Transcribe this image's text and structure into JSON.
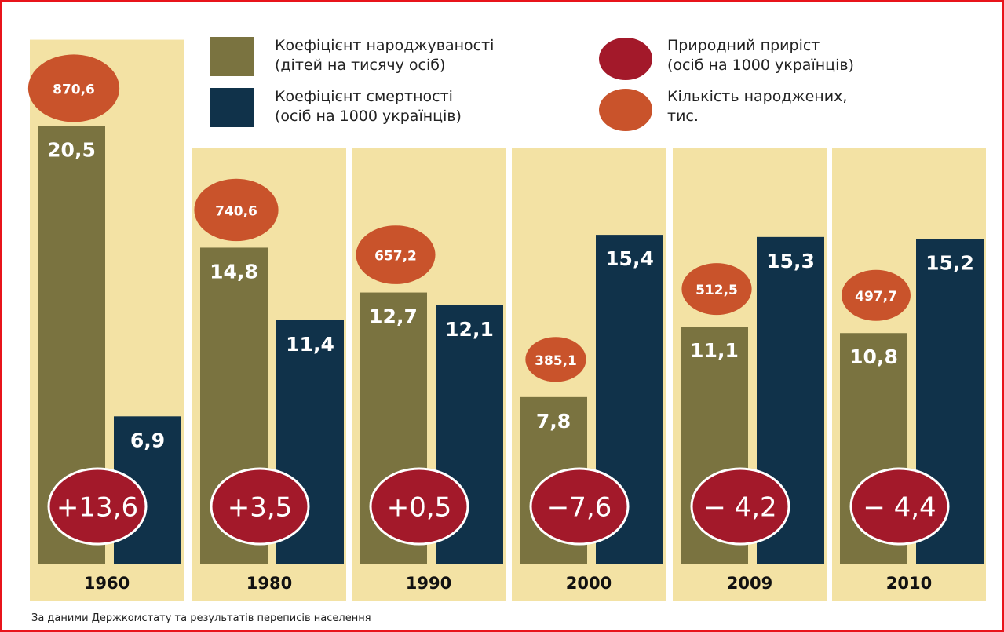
{
  "chart_data": {
    "type": "bar",
    "categories": [
      "1960",
      "1980",
      "1990",
      "2000",
      "2009",
      "2010"
    ],
    "series": [
      {
        "name": "Коефіцієнт народжуваності\n(дітей на тисячу осіб)",
        "color": "#7a7340",
        "values": [
          20.5,
          14.8,
          12.7,
          7.8,
          11.1,
          10.8
        ],
        "value_labels": [
          "20,5",
          "14,8",
          "12,7",
          "7,8",
          "11,1",
          "10,8"
        ]
      },
      {
        "name": "Коефіцієнт смертності\n(осіб на 1000 українців)",
        "color": "#10324a",
        "values": [
          6.9,
          11.4,
          12.1,
          15.4,
          15.3,
          15.2
        ],
        "value_labels": [
          "6,9",
          "11,4",
          "12,1",
          "15,4",
          "15,3",
          "15,2"
        ]
      },
      {
        "name": "Природний приріст\n(осіб на 1000 українців)",
        "color": "#a3192a",
        "values": [
          13.6,
          3.5,
          0.5,
          -7.6,
          -4.2,
          -4.4
        ],
        "value_labels": [
          "+13,6",
          "+3,5",
          "+0,5",
          "−7,6",
          "− 4,2",
          "− 4,4"
        ]
      },
      {
        "name": "Кількість народжених,\nтис.",
        "color": "#c9532b",
        "values": [
          870.6,
          740.6,
          657.2,
          385.1,
          512.5,
          497.7
        ],
        "value_labels": [
          "870,6",
          "740,6",
          "657,2",
          "385,1",
          "512,5",
          "497,7"
        ]
      }
    ],
    "source": "За даними Держкомстату та результатів переписів населення"
  }
}
